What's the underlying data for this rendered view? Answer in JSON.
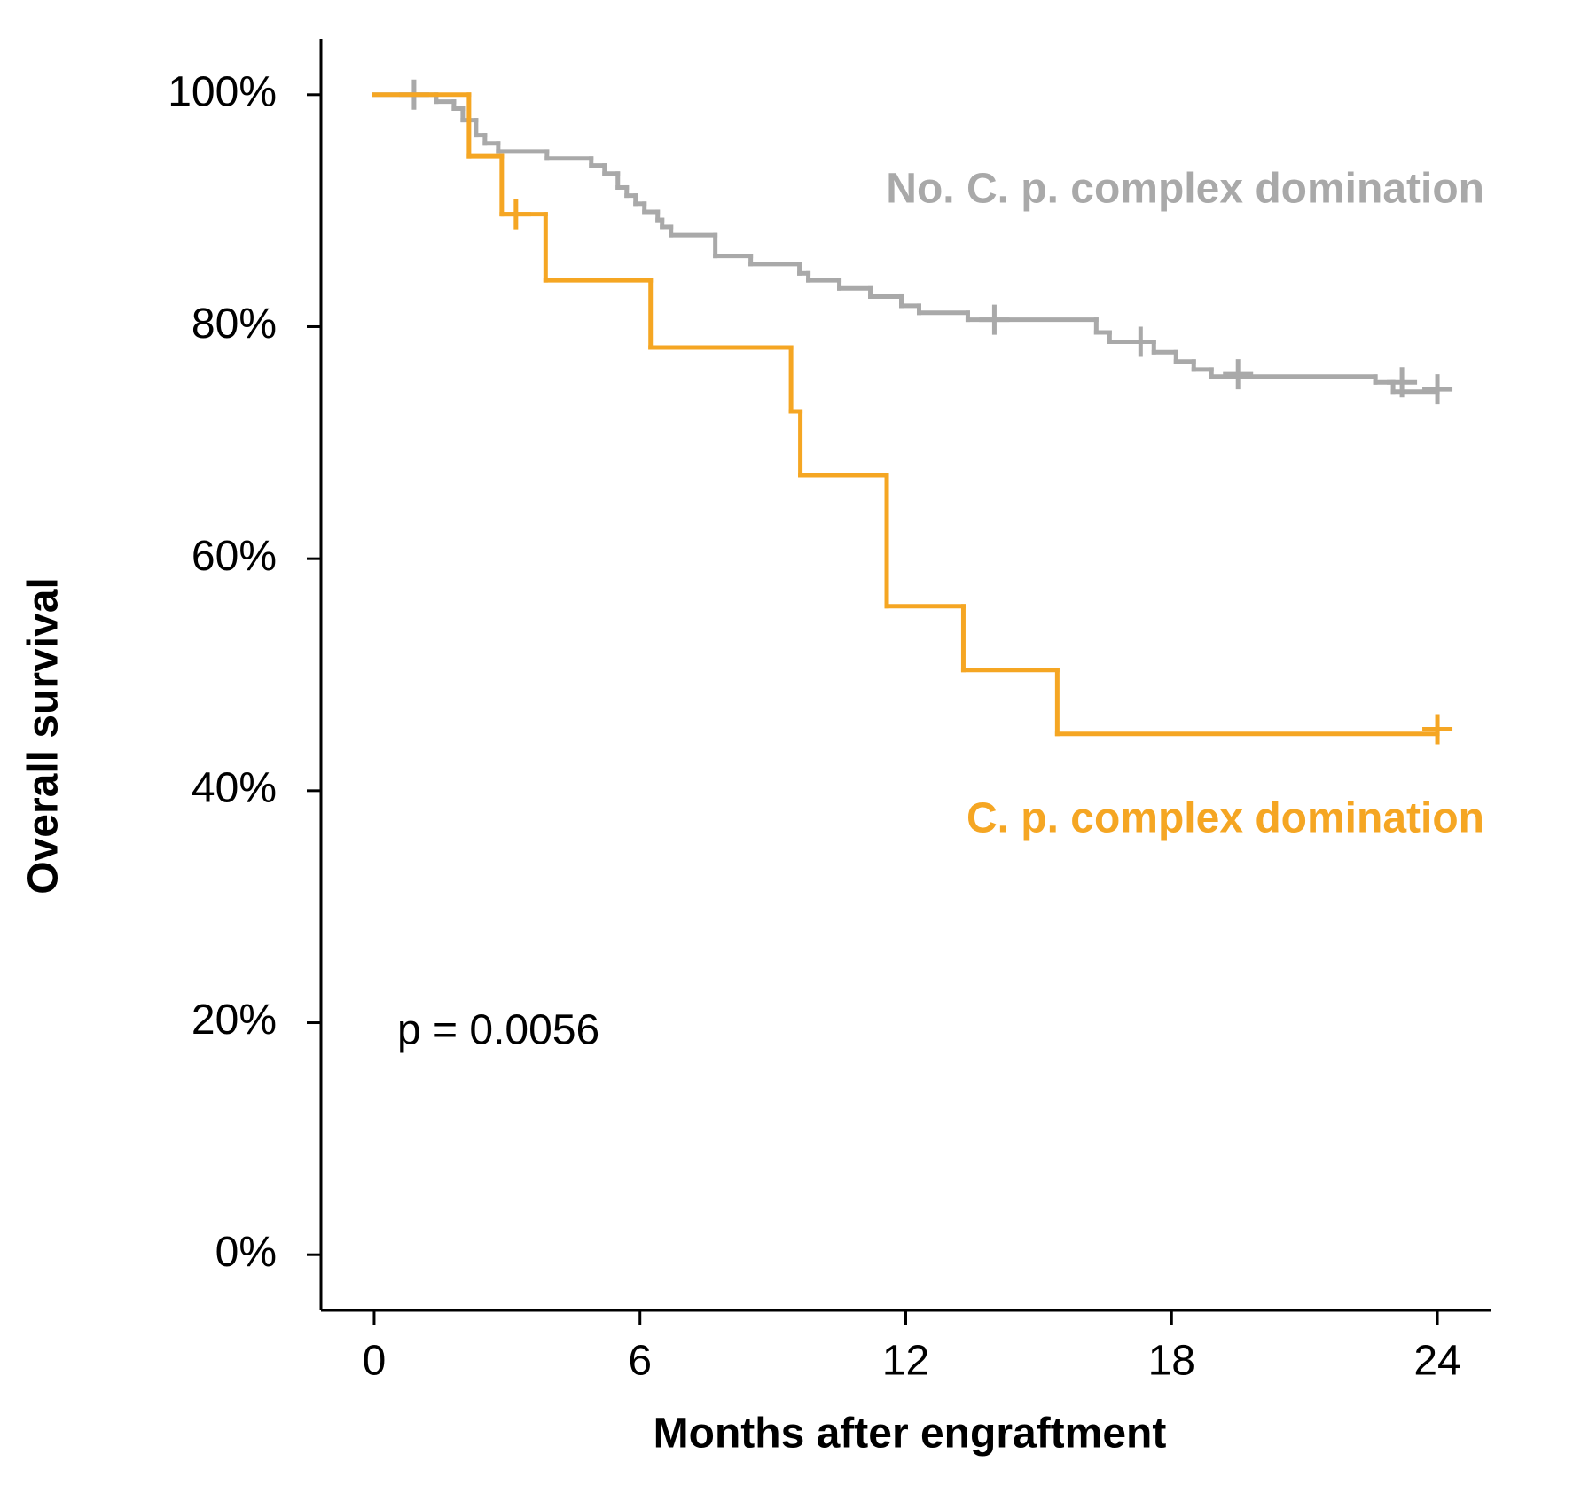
{
  "chart_data": {
    "type": "km",
    "x_label": "Months after engraftment",
    "y_label": "Overall survival",
    "annotation": "p = 0.0056",
    "xlim": [
      -1.2,
      25.2
    ],
    "ylim": [
      -4.8,
      104.8
    ],
    "xticks": [
      0,
      6,
      12,
      18,
      24
    ],
    "yticks": [
      {
        "value": 0,
        "label": "0%"
      },
      {
        "value": 20,
        "label": "20%"
      },
      {
        "value": 40,
        "label": "40%"
      },
      {
        "value": 60,
        "label": "60%"
      },
      {
        "value": 80,
        "label": "80%"
      },
      {
        "value": 100,
        "label": "100%"
      }
    ],
    "series": [
      {
        "name": "No. C. p. complex domination",
        "color": "#a9a9a9",
        "x": [
          0,
          1.4,
          1.8,
          2.0,
          2.3,
          2.5,
          2.8,
          3.9,
          4.9,
          5.2,
          5.5,
          5.7,
          5.9,
          6.1,
          6.4,
          6.5,
          6.7,
          7.7,
          8.5,
          9.6,
          9.8,
          10.5,
          11.2,
          11.9,
          12.3,
          13.4,
          16.3,
          16.6,
          17.6,
          18.1,
          18.5,
          18.9,
          22.6,
          23.0,
          24
        ],
        "values": [
          100,
          99.4,
          98.8,
          97.8,
          96.5,
          95.8,
          95.1,
          94.5,
          93.9,
          93.2,
          92.0,
          91.3,
          90.6,
          89.9,
          89.2,
          88.6,
          87.9,
          86.1,
          85.4,
          84.6,
          84.0,
          83.3,
          82.6,
          81.8,
          81.2,
          80.6,
          79.5,
          78.7,
          77.8,
          77.0,
          76.3,
          75.7,
          75.2,
          74.4,
          74.4
        ],
        "censor_x": [
          0.9,
          14.0,
          17.3,
          19.5,
          23.2,
          24
        ],
        "censor_y": [
          100,
          80.6,
          78.7,
          75.9,
          75.2,
          74.6
        ]
      },
      {
        "name": "C. p.  complex domination",
        "color": "#f5a623",
        "x": [
          0,
          2.14,
          2.88,
          3.87,
          6.24,
          9.41,
          9.62,
          11.57,
          13.3,
          15.42,
          24
        ],
        "values": [
          100,
          94.7,
          89.7,
          84.0,
          78.2,
          72.7,
          67.2,
          55.9,
          50.4,
          44.9,
          44.9
        ],
        "censor_x": [
          3.2,
          24
        ],
        "censor_y": [
          89.7,
          45.3
        ]
      }
    ]
  }
}
